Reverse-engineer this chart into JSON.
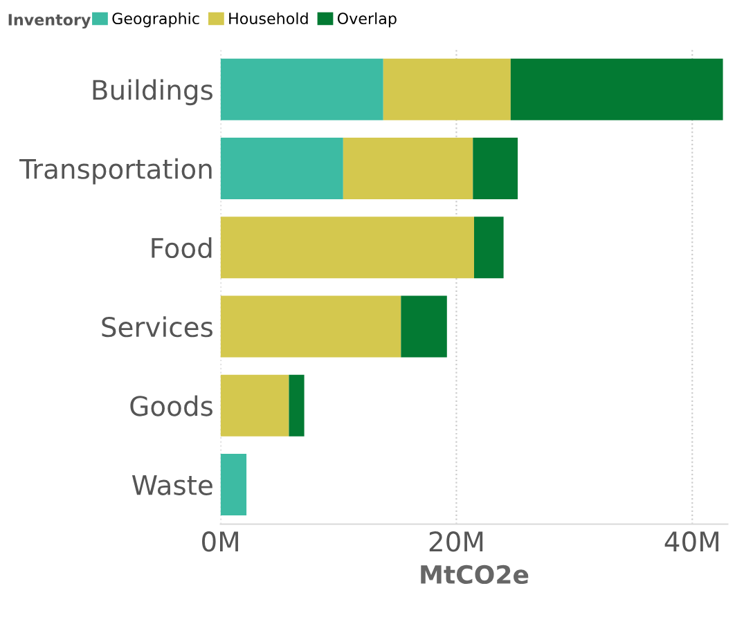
{
  "chart_data": {
    "type": "bar",
    "orientation": "horizontal",
    "stacked": true,
    "categories": [
      "Buildings",
      "Transportation",
      "Food",
      "Services",
      "Goods",
      "Waste"
    ],
    "series": [
      {
        "name": "Geographic",
        "color": "#3dbba3",
        "values": [
          13.8,
          10.4,
          null,
          null,
          null,
          2.2
        ]
      },
      {
        "name": "Household",
        "color": "#d4c84e",
        "values": [
          10.8,
          11.0,
          21.5,
          15.3,
          5.8,
          null
        ]
      },
      {
        "name": "Overlap",
        "color": "#037a33",
        "values": [
          18.0,
          3.8,
          2.5,
          3.9,
          1.3,
          null
        ]
      }
    ],
    "legend_title": "Inventory",
    "legend": "top left",
    "xlabel": "MtCO2e",
    "xlim": [
      0,
      43
    ],
    "xticks": [
      {
        "value": 0,
        "label": "0M"
      },
      {
        "value": 20,
        "label": "20M"
      },
      {
        "value": 40,
        "label": "40M"
      }
    ],
    "grid": "x"
  }
}
